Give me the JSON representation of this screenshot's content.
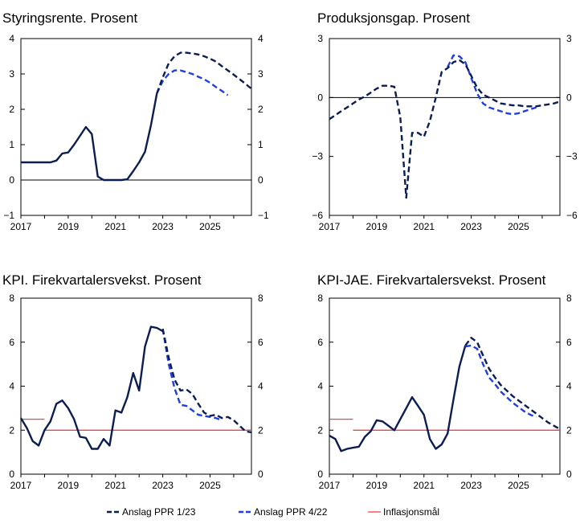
{
  "colors": {
    "ppr123": "#0b1d51",
    "ppr422": "#1f3fe0",
    "target": "#ee4444",
    "axis": "#000000"
  },
  "legend": {
    "items": [
      {
        "key": "ppr123",
        "label": "Anslag PPR 1/23",
        "style": "dashed-navy"
      },
      {
        "key": "ppr422",
        "label": "Anslag PPR 4/22",
        "style": "dashed-blue"
      },
      {
        "key": "target",
        "label": "Inflasjonsmål",
        "style": "solid-red"
      }
    ]
  },
  "chart_data": [
    {
      "type": "line",
      "title": "Styringsrente. Prosent",
      "xlim": [
        2017,
        2026.75
      ],
      "ylim": [
        -1,
        4
      ],
      "yticks": [
        -1,
        0,
        1,
        2,
        3,
        4
      ],
      "xticks": [
        2017,
        2019,
        2021,
        2023,
        2025
      ],
      "zero_line": true,
      "series": [
        {
          "key": "hist",
          "color_key": "ppr123",
          "dashed": false,
          "x": [
            2017,
            2017.5,
            2018,
            2018.25,
            2018.5,
            2018.75,
            2019,
            2019.25,
            2019.5,
            2019.75,
            2020,
            2020.25,
            2020.5,
            2020.75,
            2021,
            2021.25,
            2021.5,
            2021.75,
            2022,
            2022.25,
            2022.5,
            2022.75
          ],
          "y": [
            0.5,
            0.5,
            0.5,
            0.5,
            0.55,
            0.75,
            0.78,
            1.0,
            1.25,
            1.5,
            1.3,
            0.1,
            0.0,
            0.0,
            0.0,
            0.0,
            0.02,
            0.25,
            0.5,
            0.8,
            1.55,
            2.45
          ]
        },
        {
          "key": "ppr422",
          "color_key": "ppr422",
          "dashed": true,
          "x": [
            2022.75,
            2023,
            2023.25,
            2023.5,
            2023.75,
            2024,
            2024.25,
            2024.5,
            2024.75,
            2025,
            2025.25,
            2025.5,
            2025.75
          ],
          "y": [
            2.45,
            2.8,
            3.0,
            3.1,
            3.1,
            3.05,
            3.0,
            2.92,
            2.85,
            2.75,
            2.63,
            2.52,
            2.4
          ]
        },
        {
          "key": "ppr123",
          "color_key": "ppr123",
          "dashed": true,
          "x": [
            2022.75,
            2023,
            2023.25,
            2023.5,
            2023.75,
            2024,
            2024.25,
            2024.5,
            2024.75,
            2025,
            2025.25,
            2025.5,
            2025.75,
            2026,
            2026.25,
            2026.5,
            2026.75
          ],
          "y": [
            2.45,
            2.9,
            3.3,
            3.5,
            3.6,
            3.6,
            3.58,
            3.55,
            3.5,
            3.43,
            3.35,
            3.22,
            3.1,
            2.98,
            2.85,
            2.72,
            2.58
          ]
        }
      ]
    },
    {
      "type": "line",
      "title": "Produksjonsgap. Prosent",
      "xlim": [
        2017,
        2026.75
      ],
      "ylim": [
        -6,
        3
      ],
      "yticks": [
        -6,
        -3,
        0,
        3
      ],
      "xticks": [
        2017,
        2019,
        2021,
        2023,
        2025
      ],
      "zero_line": true,
      "series": [
        {
          "key": "ppr422",
          "color_key": "ppr422",
          "dashed": true,
          "x": [
            2022,
            2022.25,
            2022.5,
            2022.75,
            2023,
            2023.25,
            2023.5,
            2023.75,
            2024,
            2024.25,
            2024.5,
            2024.75,
            2025,
            2025.25,
            2025.5,
            2025.75
          ],
          "y": [
            1.55,
            2.15,
            2.1,
            1.8,
            1.0,
            0.2,
            -0.3,
            -0.5,
            -0.6,
            -0.7,
            -0.8,
            -0.85,
            -0.8,
            -0.7,
            -0.6,
            -0.5
          ]
        },
        {
          "key": "ppr123",
          "color_key": "ppr123",
          "dashed": true,
          "x": [
            2017,
            2017.25,
            2017.5,
            2017.75,
            2018,
            2018.25,
            2018.5,
            2018.75,
            2019,
            2019.25,
            2019.5,
            2019.75,
            2020,
            2020.25,
            2020.5,
            2020.75,
            2021,
            2021.25,
            2021.5,
            2021.75,
            2022,
            2022.25,
            2022.5,
            2022.75,
            2023,
            2023.25,
            2023.5,
            2023.75,
            2024,
            2024.25,
            2024.5,
            2024.75,
            2025,
            2025.25,
            2025.5,
            2025.75,
            2026,
            2026.25,
            2026.5,
            2026.75
          ],
          "y": [
            -1.1,
            -0.9,
            -0.7,
            -0.5,
            -0.3,
            -0.1,
            0.05,
            0.25,
            0.45,
            0.6,
            0.6,
            0.55,
            -1.0,
            -5.1,
            -1.8,
            -1.8,
            -2.0,
            -1.2,
            0.0,
            1.3,
            1.5,
            1.8,
            1.9,
            1.7,
            1.1,
            0.5,
            0.15,
            0.0,
            -0.15,
            -0.3,
            -0.35,
            -0.4,
            -0.4,
            -0.45,
            -0.45,
            -0.45,
            -0.4,
            -0.35,
            -0.3,
            -0.2
          ]
        }
      ]
    },
    {
      "type": "line",
      "title": "KPI. Firekvartalersvekst. Prosent",
      "xlim": [
        2017,
        2026.75
      ],
      "ylim": [
        0,
        8
      ],
      "yticks": [
        0,
        2,
        4,
        6,
        8
      ],
      "xticks": [
        2017,
        2019,
        2021,
        2023,
        2025
      ],
      "zero_line": false,
      "series": [
        {
          "key": "target",
          "color_key": "target",
          "dashed": false,
          "x": [
            2017,
            2018
          ],
          "y": [
            2.5,
            2.5
          ]
        },
        {
          "key": "target",
          "color_key": "target",
          "dashed": false,
          "x": [
            2018,
            2026.75
          ],
          "y": [
            2.0,
            2.0
          ]
        },
        {
          "key": "hist",
          "color_key": "ppr123",
          "dashed": false,
          "x": [
            2017,
            2017.25,
            2017.5,
            2017.75,
            2018,
            2018.25,
            2018.5,
            2018.75,
            2019,
            2019.25,
            2019.5,
            2019.75,
            2020,
            2020.25,
            2020.5,
            2020.75,
            2021,
            2021.25,
            2021.5,
            2021.75,
            2022,
            2022.25,
            2022.5,
            2022.75,
            2023
          ],
          "y": [
            2.55,
            2.1,
            1.5,
            1.3,
            2.0,
            2.4,
            3.2,
            3.35,
            3.0,
            2.5,
            1.7,
            1.65,
            1.15,
            1.15,
            1.6,
            1.3,
            2.9,
            2.8,
            3.5,
            4.6,
            3.8,
            5.8,
            6.7,
            6.65,
            6.5
          ]
        },
        {
          "key": "ppr422",
          "color_key": "ppr422",
          "dashed": true,
          "x": [
            2023,
            2023.25,
            2023.5,
            2023.75,
            2024,
            2024.25,
            2024.5,
            2024.75,
            2025,
            2025.25,
            2025.5
          ],
          "y": [
            6.6,
            5.0,
            3.9,
            3.15,
            3.1,
            2.9,
            2.7,
            2.65,
            2.6,
            2.55,
            2.45
          ]
        },
        {
          "key": "ppr123",
          "color_key": "ppr123",
          "dashed": true,
          "x": [
            2023,
            2023.25,
            2023.5,
            2023.75,
            2024,
            2024.25,
            2024.5,
            2024.75,
            2025,
            2025.25,
            2025.5,
            2025.75,
            2026,
            2026.25,
            2026.5,
            2026.75
          ],
          "y": [
            6.6,
            5.3,
            4.3,
            3.8,
            3.85,
            3.65,
            3.2,
            2.8,
            2.65,
            2.7,
            2.55,
            2.6,
            2.45,
            2.2,
            1.95,
            1.9
          ]
        }
      ]
    },
    {
      "type": "line",
      "title": "KPI-JAE. Firekvartalersvekst. Prosent",
      "xlim": [
        2017,
        2026.75
      ],
      "ylim": [
        0,
        8
      ],
      "yticks": [
        0,
        2,
        4,
        6,
        8
      ],
      "xticks": [
        2017,
        2019,
        2021,
        2023,
        2025
      ],
      "zero_line": false,
      "series": [
        {
          "key": "target",
          "color_key": "target",
          "dashed": false,
          "x": [
            2017,
            2018
          ],
          "y": [
            2.5,
            2.5
          ]
        },
        {
          "key": "target",
          "color_key": "target",
          "dashed": false,
          "x": [
            2018,
            2026.75
          ],
          "y": [
            2.0,
            2.0
          ]
        },
        {
          "key": "hist",
          "color_key": "ppr123",
          "dashed": false,
          "x": [
            2017,
            2017.25,
            2017.5,
            2017.75,
            2018,
            2018.25,
            2018.5,
            2018.75,
            2019,
            2019.25,
            2019.5,
            2019.75,
            2020,
            2020.25,
            2020.5,
            2020.75,
            2021,
            2021.25,
            2021.5,
            2021.75,
            2022,
            2022.25,
            2022.5,
            2022.75
          ],
          "y": [
            1.75,
            1.6,
            1.05,
            1.15,
            1.2,
            1.25,
            1.7,
            1.95,
            2.45,
            2.4,
            2.2,
            2.0,
            2.5,
            3.0,
            3.5,
            3.1,
            2.7,
            1.6,
            1.15,
            1.35,
            1.85,
            3.4,
            4.9,
            5.85
          ]
        },
        {
          "key": "ppr422",
          "color_key": "ppr422",
          "dashed": true,
          "x": [
            2022.75,
            2023,
            2023.25,
            2023.5,
            2023.75,
            2024,
            2024.25,
            2024.5,
            2024.75,
            2025,
            2025.25,
            2025.5,
            2025.75
          ],
          "y": [
            5.8,
            5.85,
            5.7,
            5.0,
            4.4,
            4.1,
            3.75,
            3.5,
            3.25,
            3.05,
            2.85,
            2.7,
            2.6
          ]
        },
        {
          "key": "ppr123",
          "color_key": "ppr123",
          "dashed": true,
          "x": [
            2022.75,
            2023,
            2023.25,
            2023.5,
            2023.75,
            2024,
            2024.25,
            2024.5,
            2024.75,
            2025,
            2025.25,
            2025.5,
            2025.75,
            2026,
            2026.25,
            2026.5,
            2026.75
          ],
          "y": [
            5.85,
            6.2,
            6.0,
            5.4,
            4.8,
            4.4,
            4.05,
            3.8,
            3.55,
            3.35,
            3.15,
            2.95,
            2.75,
            2.55,
            2.35,
            2.2,
            2.05
          ]
        }
      ]
    }
  ]
}
